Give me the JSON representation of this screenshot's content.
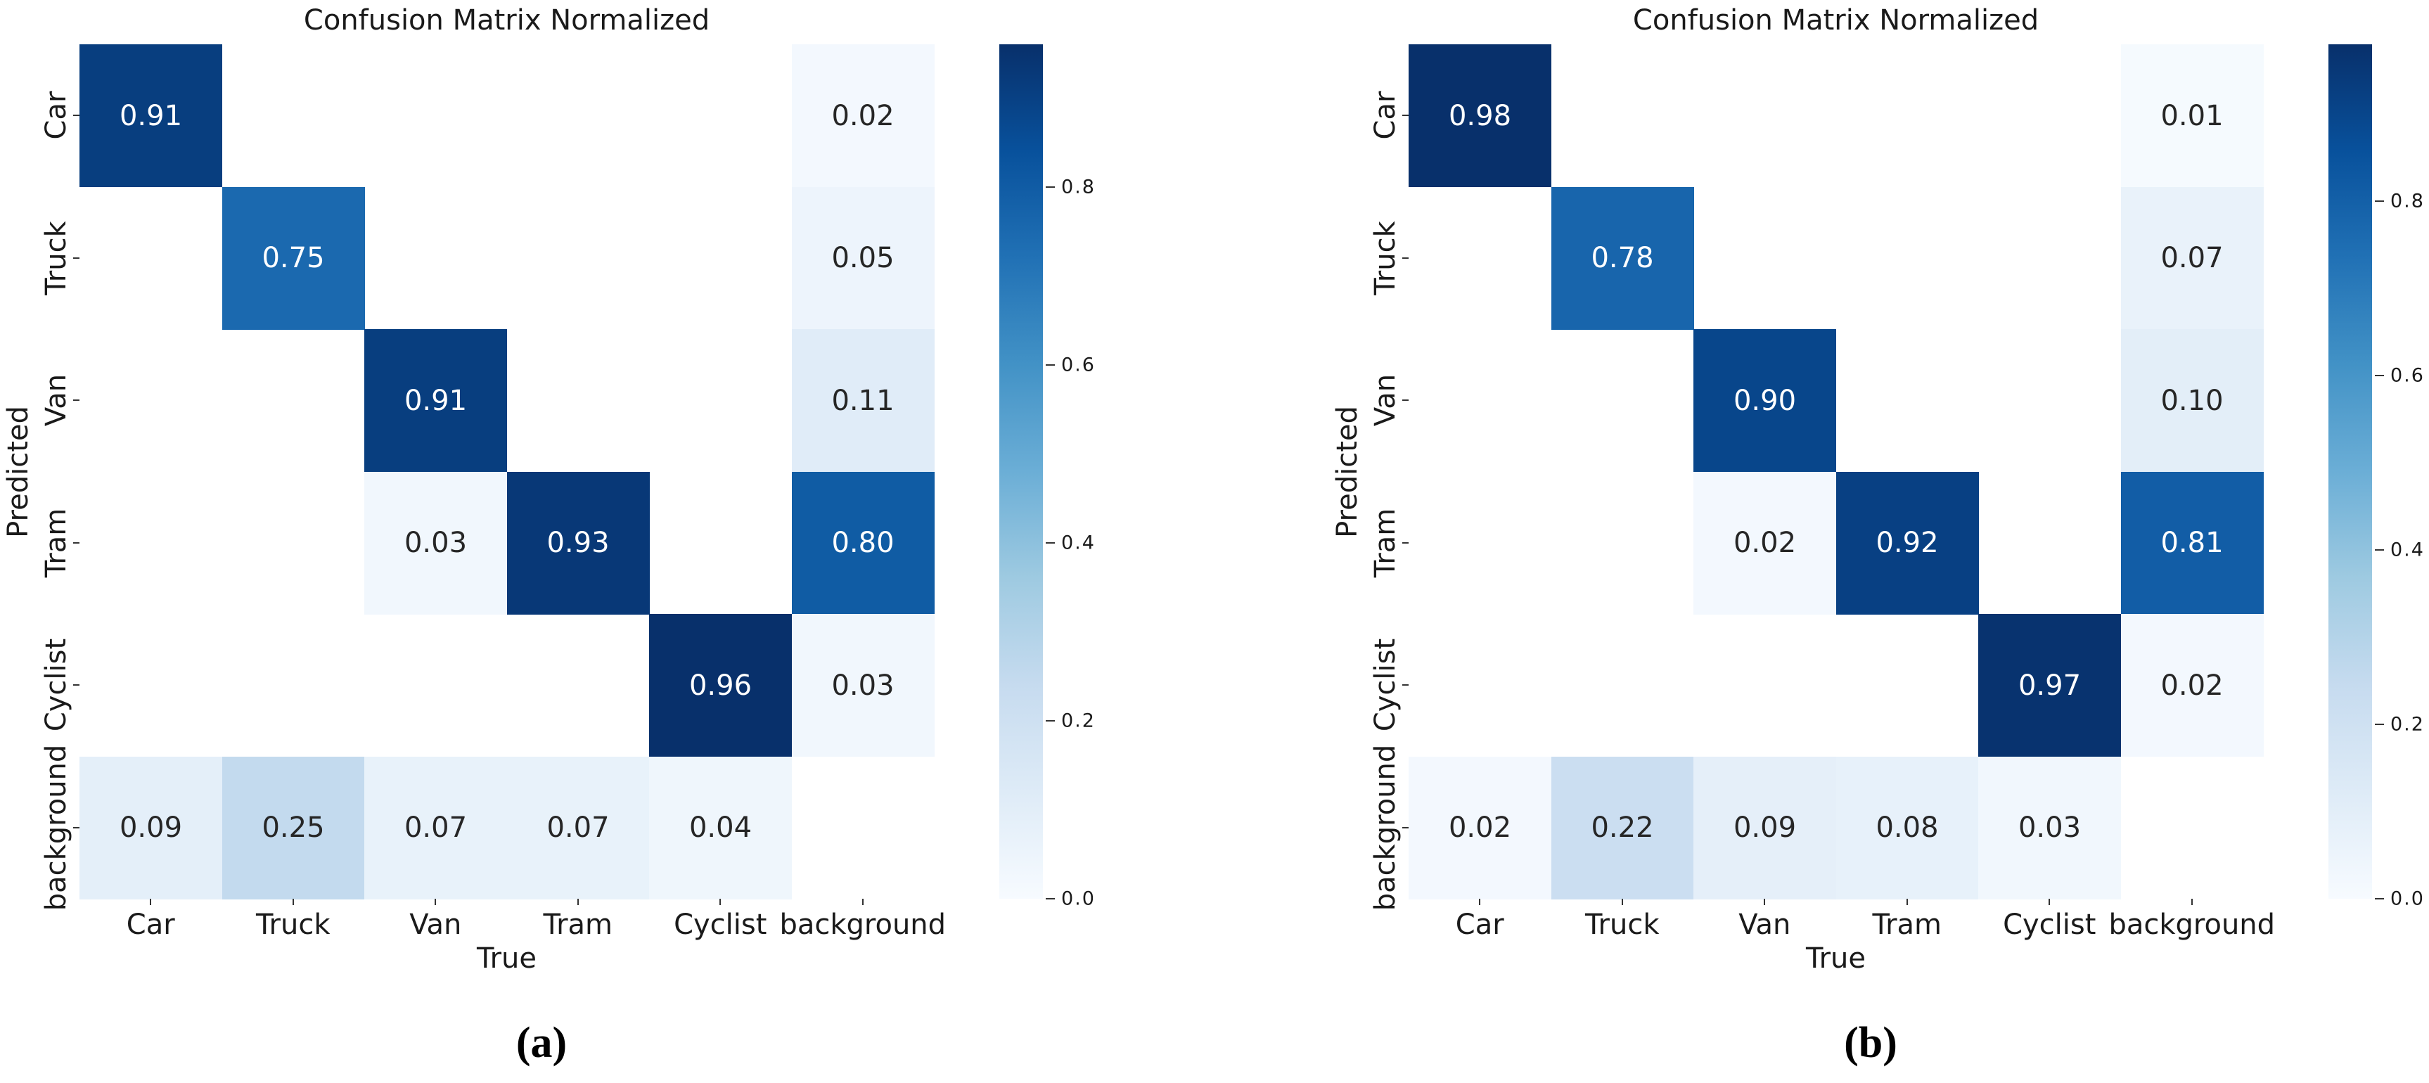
{
  "chart_data": [
    {
      "type": "heatmap",
      "caption": "(a)",
      "title": "Confusion Matrix Normalized",
      "xlabel": "True",
      "ylabel": "Predicted",
      "x_categories": [
        "Car",
        "Truck",
        "Van",
        "Tram",
        "Cyclist",
        "background"
      ],
      "y_categories": [
        "Car",
        "Truck",
        "Van",
        "Tram",
        "Cyclist",
        "background"
      ],
      "colormap": "Blues",
      "vmin": 0.0,
      "vmax": 0.96,
      "grid": false,
      "colorbar_ticks": [
        0.0,
        0.2,
        0.4,
        0.6,
        0.8
      ],
      "colorbar_tick_labels": [
        "0.0",
        "0.2",
        "0.4",
        "0.6",
        "0.8"
      ],
      "cells": [
        {
          "row": 0,
          "col": 0,
          "value": 0.91,
          "label": "0.91"
        },
        {
          "row": 0,
          "col": 5,
          "value": 0.02,
          "label": "0.02"
        },
        {
          "row": 1,
          "col": 1,
          "value": 0.75,
          "label": "0.75"
        },
        {
          "row": 1,
          "col": 5,
          "value": 0.05,
          "label": "0.05"
        },
        {
          "row": 2,
          "col": 2,
          "value": 0.91,
          "label": "0.91"
        },
        {
          "row": 2,
          "col": 5,
          "value": 0.11,
          "label": "0.11"
        },
        {
          "row": 3,
          "col": 2,
          "value": 0.03,
          "label": "0.03"
        },
        {
          "row": 3,
          "col": 3,
          "value": 0.93,
          "label": "0.93"
        },
        {
          "row": 3,
          "col": 5,
          "value": 0.8,
          "label": "0.80"
        },
        {
          "row": 4,
          "col": 4,
          "value": 0.96,
          "label": "0.96"
        },
        {
          "row": 4,
          "col": 5,
          "value": 0.03,
          "label": "0.03"
        },
        {
          "row": 5,
          "col": 0,
          "value": 0.09,
          "label": "0.09"
        },
        {
          "row": 5,
          "col": 1,
          "value": 0.25,
          "label": "0.25"
        },
        {
          "row": 5,
          "col": 2,
          "value": 0.07,
          "label": "0.07"
        },
        {
          "row": 5,
          "col": 3,
          "value": 0.07,
          "label": "0.07"
        },
        {
          "row": 5,
          "col": 4,
          "value": 0.04,
          "label": "0.04"
        }
      ]
    },
    {
      "type": "heatmap",
      "caption": "(b)",
      "title": "Confusion Matrix Normalized",
      "xlabel": "True",
      "ylabel": "Predicted",
      "x_categories": [
        "Car",
        "Truck",
        "Van",
        "Tram",
        "Cyclist",
        "background"
      ],
      "y_categories": [
        "Car",
        "Truck",
        "Van",
        "Tram",
        "Cyclist",
        "background"
      ],
      "colormap": "Blues",
      "vmin": 0.0,
      "vmax": 0.98,
      "grid": false,
      "colorbar_ticks": [
        0.0,
        0.2,
        0.4,
        0.6,
        0.8
      ],
      "colorbar_tick_labels": [
        "0.0",
        "0.2",
        "0.4",
        "0.6",
        "0.8"
      ],
      "cells": [
        {
          "row": 0,
          "col": 0,
          "value": 0.98,
          "label": "0.98"
        },
        {
          "row": 0,
          "col": 5,
          "value": 0.01,
          "label": "0.01"
        },
        {
          "row": 1,
          "col": 1,
          "value": 0.78,
          "label": "0.78"
        },
        {
          "row": 1,
          "col": 5,
          "value": 0.07,
          "label": "0.07"
        },
        {
          "row": 2,
          "col": 2,
          "value": 0.9,
          "label": "0.90"
        },
        {
          "row": 2,
          "col": 5,
          "value": 0.1,
          "label": "0.10"
        },
        {
          "row": 3,
          "col": 2,
          "value": 0.02,
          "label": "0.02"
        },
        {
          "row": 3,
          "col": 3,
          "value": 0.92,
          "label": "0.92"
        },
        {
          "row": 3,
          "col": 5,
          "value": 0.81,
          "label": "0.81"
        },
        {
          "row": 4,
          "col": 4,
          "value": 0.97,
          "label": "0.97"
        },
        {
          "row": 4,
          "col": 5,
          "value": 0.02,
          "label": "0.02"
        },
        {
          "row": 5,
          "col": 0,
          "value": 0.02,
          "label": "0.02"
        },
        {
          "row": 5,
          "col": 1,
          "value": 0.22,
          "label": "0.22"
        },
        {
          "row": 5,
          "col": 2,
          "value": 0.09,
          "label": "0.09"
        },
        {
          "row": 5,
          "col": 3,
          "value": 0.08,
          "label": "0.08"
        },
        {
          "row": 5,
          "col": 4,
          "value": 0.03,
          "label": "0.03"
        }
      ]
    }
  ],
  "colors": {
    "blues_anchors": [
      "#f7fbff",
      "#deebf7",
      "#c6dbef",
      "#9ecae1",
      "#6baed6",
      "#4292c6",
      "#2171b5",
      "#08519c",
      "#08306b"
    ],
    "annotation_dark": "#262626",
    "annotation_light": "#ffffff",
    "axis_text": "#1a1a1a"
  }
}
